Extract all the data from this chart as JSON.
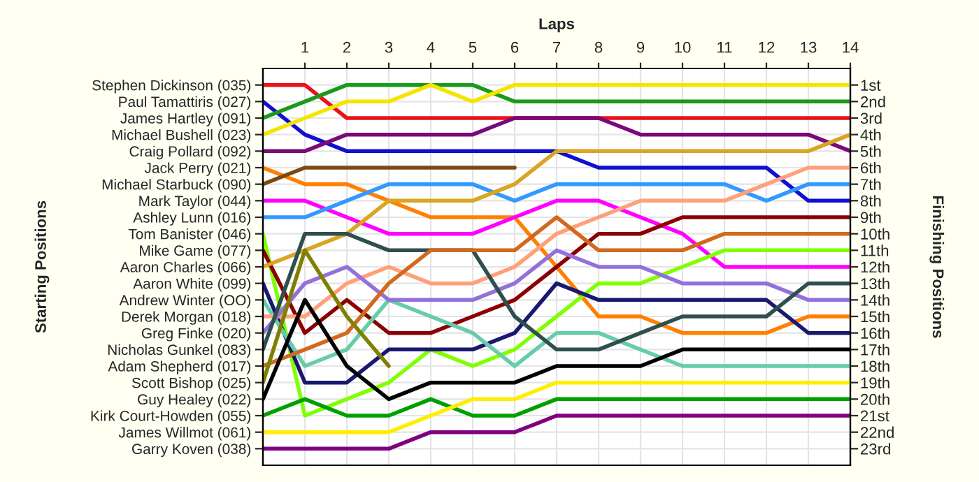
{
  "chart_data": {
    "type": "line",
    "title": "Laps",
    "annotations": [
      "Starting Positions"
    ],
    "y2label": "Finishing Positions",
    "x": [
      0,
      1,
      2,
      3,
      4,
      5,
      6,
      7,
      8,
      9,
      10,
      11,
      12,
      13,
      14
    ],
    "xlim": [
      0,
      14
    ],
    "xticks": [
      1,
      2,
      3,
      4,
      5,
      6,
      7,
      8,
      9,
      10,
      11,
      12,
      13,
      14
    ],
    "y_categories": [
      "Stephen Dickinson (035)",
      "Paul Tamattiris (027)",
      "James Hartley (091)",
      "Michael Bushell (023)",
      "Craig Pollard (092)",
      "Jack Perry (021)",
      "Michael Starbuck (090)",
      "Mark Taylor (044)",
      "Ashley Lunn (016)",
      "Tom Banister (046)",
      "Mike Game (077)",
      "Aaron Charles (066)",
      "Aaron White (099)",
      "Andrew Winter (OO)",
      "Derek Morgan (018)",
      "Greg Finke (020)",
      "Nicholas Gunkel (083)",
      "Adam Shepherd (017)",
      "Scott Bishop (025)",
      "Guy Healey (022)",
      "Kirk Court-Howden (055)",
      "James Willmot (061)",
      "Garry Koven (038)"
    ],
    "y2lim": [
      24,
      0
    ],
    "y2ticks": [
      {
        "value": 1,
        "label": "1st"
      },
      {
        "value": 2,
        "label": "2nd"
      },
      {
        "value": 3,
        "label": "3rd"
      },
      {
        "value": 4,
        "label": "4th"
      },
      {
        "value": 5,
        "label": "5th"
      },
      {
        "value": 6,
        "label": "6th"
      },
      {
        "value": 7,
        "label": "7th"
      },
      {
        "value": 8,
        "label": "8th"
      },
      {
        "value": 9,
        "label": "9th"
      },
      {
        "value": 10,
        "label": "10th"
      },
      {
        "value": 11,
        "label": "11th"
      },
      {
        "value": 12,
        "label": "12th"
      },
      {
        "value": 13,
        "label": "13th"
      },
      {
        "value": 14,
        "label": "14th"
      },
      {
        "value": 15,
        "label": "15th"
      },
      {
        "value": 16,
        "label": "16th"
      },
      {
        "value": 17,
        "label": "17th"
      },
      {
        "value": 18,
        "label": "18th"
      },
      {
        "value": 19,
        "label": "19th"
      },
      {
        "value": 20,
        "label": "20th"
      },
      {
        "value": 21,
        "label": "21st"
      },
      {
        "value": 22,
        "label": "22nd"
      },
      {
        "value": 23,
        "label": "23rd"
      }
    ],
    "grid": true,
    "legend": false,
    "series": [
      {
        "axis": "y2",
        "color": "#e8141a",
        "values": [
          1,
          1,
          3,
          3,
          3,
          3,
          3,
          3,
          3,
          3,
          3,
          3,
          3,
          3,
          3
        ]
      },
      {
        "axis": "y2",
        "color": "#1010d0",
        "values": [
          2,
          4,
          5,
          5,
          5,
          5,
          5,
          5,
          6,
          6,
          6,
          6,
          6,
          8,
          8
        ]
      },
      {
        "axis": "y2",
        "color": "#1a9a1a",
        "values": [
          3,
          2,
          1,
          1,
          1,
          1,
          2,
          2,
          2,
          2,
          2,
          2,
          2,
          2,
          2
        ]
      },
      {
        "axis": "y2",
        "color": "#f5e400",
        "values": [
          4,
          3,
          2,
          2,
          1,
          2,
          1,
          1,
          1,
          1,
          1,
          1,
          1,
          1,
          1
        ]
      },
      {
        "axis": "y2",
        "color": "#7a0a7a",
        "values": [
          5,
          5,
          4,
          4,
          4,
          4,
          3,
          3,
          3,
          4,
          4,
          4,
          4,
          4,
          5
        ]
      },
      {
        "axis": "y2",
        "color": "#ff8000",
        "values": [
          6,
          7,
          7,
          8,
          9,
          9,
          9,
          12,
          15,
          15,
          16,
          16,
          16,
          15,
          15
        ]
      },
      {
        "axis": "y2",
        "color": "#7b4a12",
        "values": [
          7,
          6,
          6,
          6,
          6,
          6,
          6,
          null,
          null,
          null,
          null,
          null,
          null,
          null,
          null
        ]
      },
      {
        "axis": "y2",
        "color": "#ff00ff",
        "values": [
          8,
          8,
          9,
          10,
          10,
          10,
          9,
          8,
          8,
          9,
          10,
          12,
          12,
          12,
          12
        ]
      },
      {
        "axis": "y2",
        "color": "#3399ff",
        "values": [
          9,
          9,
          8,
          7,
          7,
          7,
          8,
          7,
          7,
          7,
          7,
          7,
          8,
          7,
          7
        ]
      },
      {
        "axis": "y2",
        "color": "#80ff00",
        "values": [
          10,
          21,
          20,
          19,
          17,
          18,
          17,
          15,
          13,
          13,
          12,
          11,
          11,
          11,
          11
        ]
      },
      {
        "axis": "y2",
        "color": "#8b0000",
        "values": [
          11,
          16,
          14,
          16,
          16,
          15,
          14,
          12,
          10,
          10,
          9,
          9,
          9,
          9,
          9
        ]
      },
      {
        "axis": "y2",
        "color": "#daa520",
        "values": [
          12,
          11,
          10,
          8,
          8,
          8,
          7,
          5,
          5,
          5,
          5,
          5,
          5,
          5,
          4
        ]
      },
      {
        "axis": "y2",
        "color": "#191970",
        "values": [
          13,
          19,
          19,
          17,
          17,
          17,
          16,
          13,
          14,
          14,
          14,
          14,
          14,
          16,
          16
        ]
      },
      {
        "axis": "y2",
        "color": "#66cdaa",
        "values": [
          14,
          18,
          17,
          14,
          15,
          16,
          18,
          16,
          16,
          17,
          18,
          18,
          18,
          18,
          18
        ]
      },
      {
        "axis": "y2",
        "color": "#ffa07a",
        "values": [
          15,
          15,
          13,
          12,
          13,
          13,
          12,
          10,
          9,
          8,
          8,
          8,
          7,
          6,
          6
        ]
      },
      {
        "axis": "y2",
        "color": "#9370db",
        "values": [
          16,
          13,
          12,
          14,
          14,
          14,
          13,
          11,
          12,
          12,
          13,
          13,
          13,
          14,
          14
        ]
      },
      {
        "axis": "y2",
        "color": "#2f4f4f",
        "values": [
          17,
          10,
          10,
          11,
          11,
          11,
          15,
          17,
          17,
          16,
          15,
          15,
          15,
          13,
          13
        ]
      },
      {
        "axis": "y2",
        "color": "#d2691e",
        "values": [
          18,
          17,
          16,
          13,
          11,
          11,
          11,
          9,
          11,
          11,
          11,
          10,
          10,
          10,
          10
        ]
      },
      {
        "axis": "y2",
        "color": "#808000",
        "values": [
          19,
          11,
          15,
          18,
          null,
          null,
          null,
          null,
          null,
          null,
          null,
          null,
          null,
          null,
          null
        ]
      },
      {
        "axis": "y2",
        "color": "#000000",
        "values": [
          20,
          14,
          18,
          20,
          19,
          19,
          19,
          18,
          18,
          18,
          17,
          17,
          17,
          17,
          17
        ]
      },
      {
        "axis": "y2",
        "color": "#00a000",
        "values": [
          21,
          20,
          21,
          21,
          20,
          21,
          21,
          20,
          20,
          20,
          20,
          20,
          20,
          20,
          20
        ]
      },
      {
        "axis": "y2",
        "color": "#ffee00",
        "values": [
          22,
          22,
          22,
          22,
          21,
          20,
          20,
          19,
          19,
          19,
          19,
          19,
          19,
          19,
          19
        ]
      },
      {
        "axis": "y2",
        "color": "#800080",
        "values": [
          23,
          23,
          23,
          23,
          22,
          22,
          22,
          21,
          21,
          21,
          21,
          21,
          21,
          21,
          21
        ]
      }
    ]
  }
}
